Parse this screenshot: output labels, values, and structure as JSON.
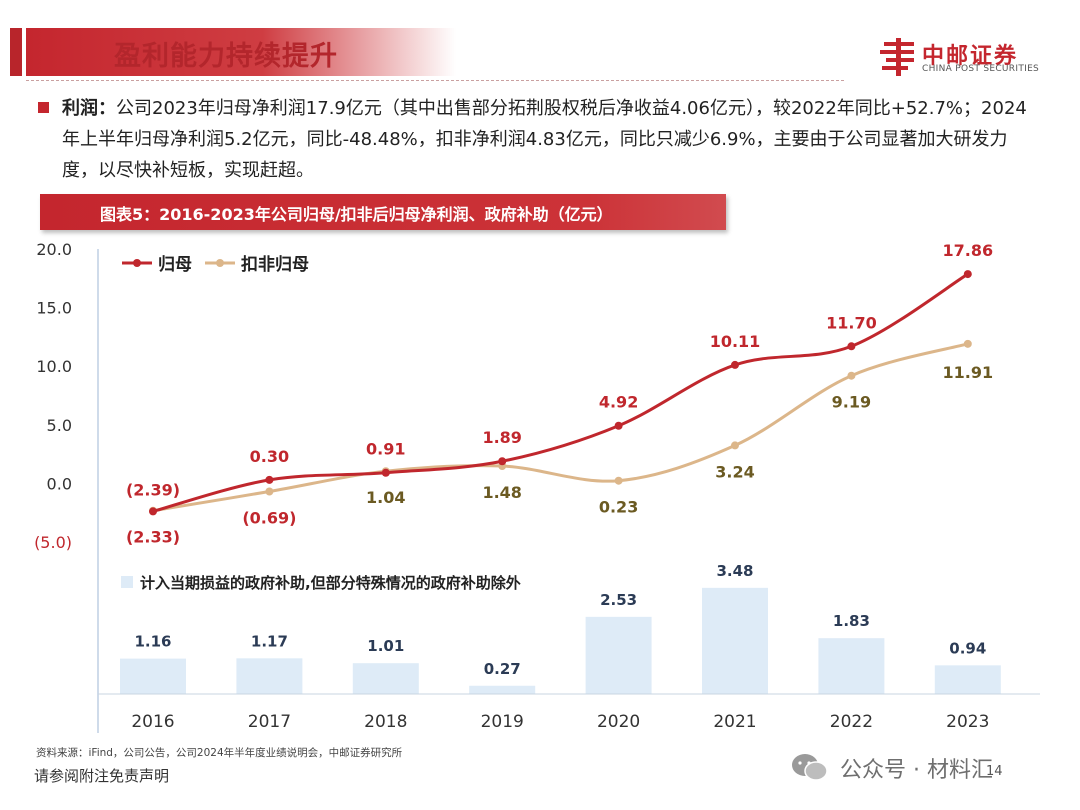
{
  "header": {
    "title": "盈利能力持续提升",
    "logo_name": "中邮证券",
    "logo_en": "CHINA POST SECURITIES"
  },
  "body": {
    "label": "利润：",
    "text": "公司2023年归母净利润17.9亿元（其中出售部分拓荆股权税后净收益4.06亿元），较2022年同比+52.7%；2024年上半年归母净利润5.2亿元，同比-48.48%，扣非净利润4.83亿元，同比只减少6.9%，主要由于公司显著加大研发力度，以尽快补短板，实现赶超。"
  },
  "figure_title": "图表5：2016-2023年公司归母/扣非后归母净利润、政府补助（亿元）",
  "chart_data": [
    {
      "type": "line",
      "x": [
        "2016",
        "2017",
        "2018",
        "2019",
        "2020",
        "2021",
        "2022",
        "2023"
      ],
      "yticks": [
        "20.0",
        "15.0",
        "10.0",
        "5.0",
        "0.0",
        "(5.0)"
      ],
      "ylim": [
        -5,
        20
      ],
      "grid": false,
      "legend_position": "top-left",
      "series": [
        {
          "name": "归母",
          "color": "#c0272d",
          "values": [
            -2.39,
            0.3,
            0.91,
            1.89,
            4.92,
            10.11,
            11.7,
            17.86
          ],
          "labels": [
            "(2.39)",
            "0.30",
            "0.91",
            "1.89",
            "4.92",
            "10.11",
            "11.70",
            "17.86"
          ]
        },
        {
          "name": "扣非归母",
          "color": "#dcb68a",
          "values": [
            -2.33,
            -0.69,
            1.04,
            1.48,
            0.23,
            3.24,
            9.19,
            11.91
          ],
          "labels": [
            "(2.33)",
            "(0.69)",
            "1.04",
            "1.48",
            "0.23",
            "3.24",
            "9.19",
            "11.91"
          ]
        }
      ]
    },
    {
      "type": "bar",
      "categories": [
        "2016",
        "2017",
        "2018",
        "2019",
        "2020",
        "2021",
        "2022",
        "2023"
      ],
      "series": [
        {
          "name": "计入当期损益的政府补助,但部分特殊情况的政府补助除外",
          "color": "#deebf7",
          "values": [
            1.16,
            1.17,
            1.01,
            0.27,
            2.53,
            3.48,
            1.83,
            0.94
          ],
          "labels": [
            "1.16",
            "1.17",
            "1.01",
            "0.27",
            "2.53",
            "3.48",
            "1.83",
            "0.94"
          ]
        }
      ],
      "legend_position": "top-left"
    }
  ],
  "colors": {
    "accent": "#c4262e",
    "label_dark": "#6b5a22",
    "label_red": "#c0272d"
  },
  "footer": {
    "source": "资料来源：iFind，公司公告，公司2024年半年度业绩说明会，中邮证券研究所",
    "disclaimer": "请参阅附注免责声明",
    "watermark": "公众号 · 材料汇",
    "page": "14"
  }
}
